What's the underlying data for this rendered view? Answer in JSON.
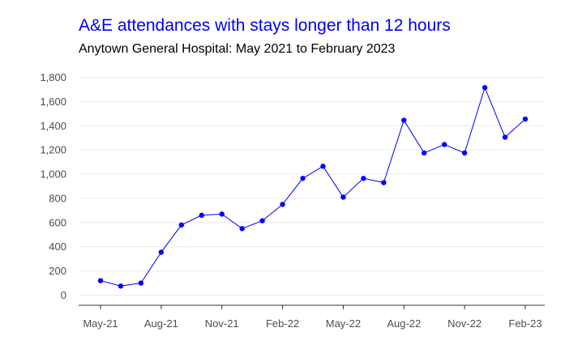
{
  "chart_data": {
    "type": "line",
    "title": "A&E attendances with stays longer than 12 hours",
    "subtitle": "Anytown General Hospital: May 2021 to February 2023",
    "xlabel": "",
    "ylabel": "",
    "x": [
      "May-21",
      "Jun-21",
      "Jul-21",
      "Aug-21",
      "Sep-21",
      "Oct-21",
      "Nov-21",
      "Dec-21",
      "Jan-22",
      "Feb-22",
      "Mar-22",
      "Apr-22",
      "May-22",
      "Jun-22",
      "Jul-22",
      "Aug-22",
      "Sep-22",
      "Oct-22",
      "Nov-22",
      "Dec-22",
      "Jan-23",
      "Feb-23"
    ],
    "x_tick_labels": [
      "May-21",
      "Aug-21",
      "Nov-21",
      "Feb-22",
      "May-22",
      "Aug-22",
      "Nov-22",
      "Feb-23"
    ],
    "x_tick_indices": [
      0,
      3,
      6,
      9,
      12,
      15,
      18,
      21
    ],
    "ylim": [
      0,
      1800
    ],
    "y_ticks": [
      0,
      200,
      400,
      600,
      800,
      1000,
      1200,
      1400,
      1600,
      1800
    ],
    "y_tick_labels": [
      "0",
      "200",
      "400",
      "600",
      "800",
      "1,000",
      "1,200",
      "1,400",
      "1,600",
      "1,800"
    ],
    "series": [
      {
        "values": [
          120,
          75,
          100,
          355,
          580,
          660,
          670,
          550,
          615,
          750,
          965,
          1065,
          810,
          965,
          930,
          1445,
          1175,
          1245,
          1175,
          1715,
          1305,
          1455
        ]
      }
    ],
    "grid": "horizontal",
    "colors": {
      "title": "#0000ff",
      "line": "#0000ff",
      "marker": "#0000ff",
      "grid": "#ebebeb",
      "axis": "#333333"
    }
  }
}
